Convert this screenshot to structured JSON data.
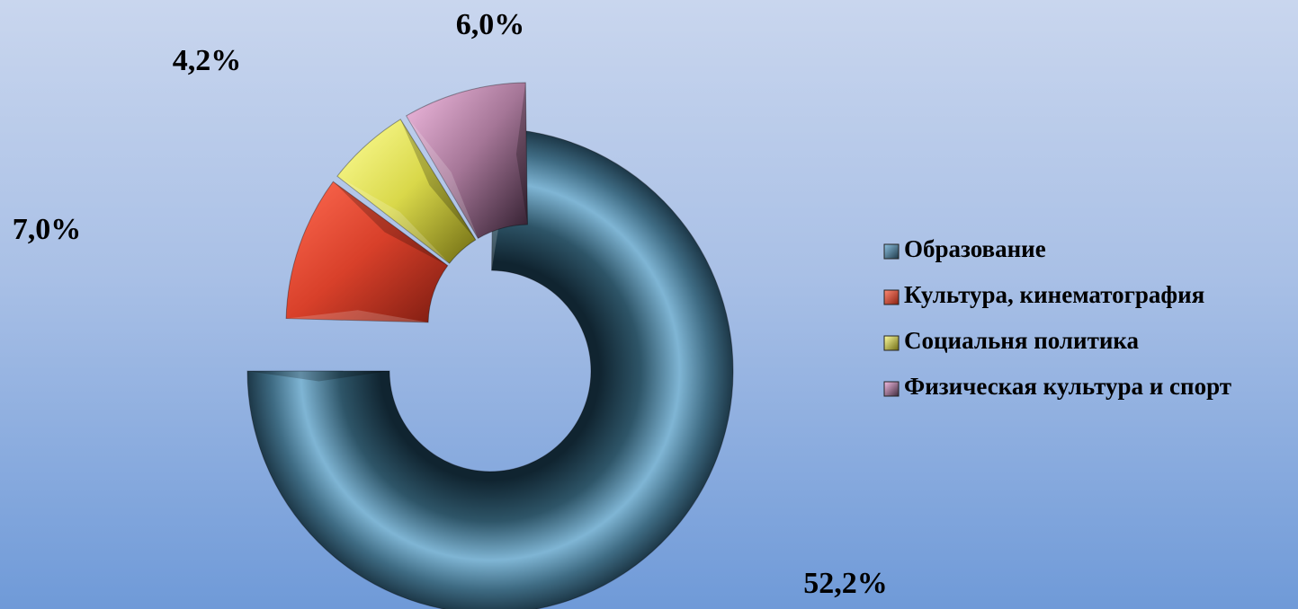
{
  "chart_data": {
    "type": "donut",
    "title": "",
    "categories": [
      "Образование",
      "Культура, кинематография",
      "Социальня политика",
      "Физическая культура и спорт"
    ],
    "values": [
      52.2,
      7.0,
      4.2,
      6.0
    ],
    "data_labels": [
      "52,2%",
      "7,0%",
      "4,2%",
      "6,0%"
    ],
    "colors": [
      "#5b8fb3",
      "#e8553c",
      "#d8d84a",
      "#c98fb5"
    ],
    "legend_position": "right",
    "exploded": true
  }
}
